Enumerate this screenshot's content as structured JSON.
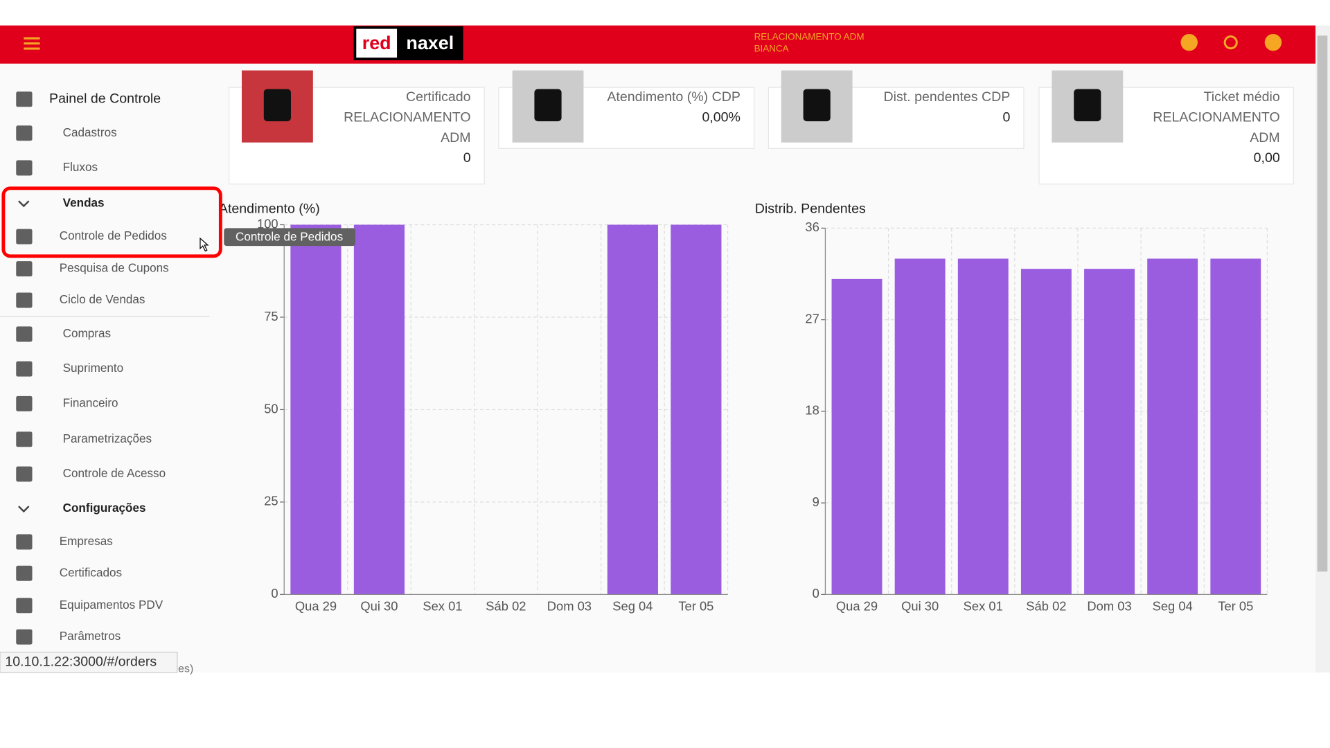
{
  "header": {
    "logo_red": "red",
    "logo_black": "naxel",
    "system": "RELACIONAMENTO ADM",
    "user": "BIANCA"
  },
  "sidebar": {
    "items": [
      "Painel de Controle",
      "Cadastros",
      "Fluxos",
      "Vendas",
      "Controle de Pedidos",
      "Pesquisa de Cupons",
      "Ciclo de Vendas",
      "Compras",
      "Suprimento",
      "Financeiro",
      "Parametrizações",
      "Controle de Acesso",
      "Configurações",
      "Empresas",
      "Certificados",
      "Equipamentos PDV",
      "Parâmetros"
    ],
    "partial": "es)"
  },
  "tooltip": "Controle de Pedidos",
  "status_url": "10.10.1.22:3000/#/orders",
  "cards": [
    {
      "title": [
        "Certificado",
        "RELACIONAMENTO",
        "ADM"
      ],
      "value": "0"
    },
    {
      "title": [
        "Atendimento (%) CDP"
      ],
      "value": "0,00%"
    },
    {
      "title": [
        "Dist. pendentes CDP"
      ],
      "value": "0"
    },
    {
      "title": [
        "Ticket médio",
        "RELACIONAMENTO",
        "ADM"
      ],
      "value": "0,00"
    }
  ],
  "charts": [
    {
      "type": "bar",
      "title": "Atendimento (%)",
      "categories": [
        "Qua 29",
        "Qui 30",
        "Sex 01",
        "Sáb 02",
        "Dom 03",
        "Seg 04",
        "Ter 05"
      ],
      "values": [
        100,
        100,
        0,
        0,
        0,
        100,
        100
      ],
      "color": "#9b5de0",
      "ylim": [
        0,
        100
      ],
      "yticks": [
        0,
        25,
        50,
        75,
        100
      ],
      "grid": true
    },
    {
      "type": "bar",
      "title": "Distrib. Pendentes",
      "categories": [
        "Qua 29",
        "Qui 30",
        "Sex 01",
        "Sáb 02",
        "Dom 03",
        "Seg 04",
        "Ter 05"
      ],
      "values": [
        31,
        33,
        33,
        32,
        32,
        33,
        33
      ],
      "color": "#9b5de0",
      "ylim": [
        0,
        36
      ],
      "yticks": [
        0,
        9,
        18,
        27,
        36
      ],
      "grid": true
    }
  ]
}
